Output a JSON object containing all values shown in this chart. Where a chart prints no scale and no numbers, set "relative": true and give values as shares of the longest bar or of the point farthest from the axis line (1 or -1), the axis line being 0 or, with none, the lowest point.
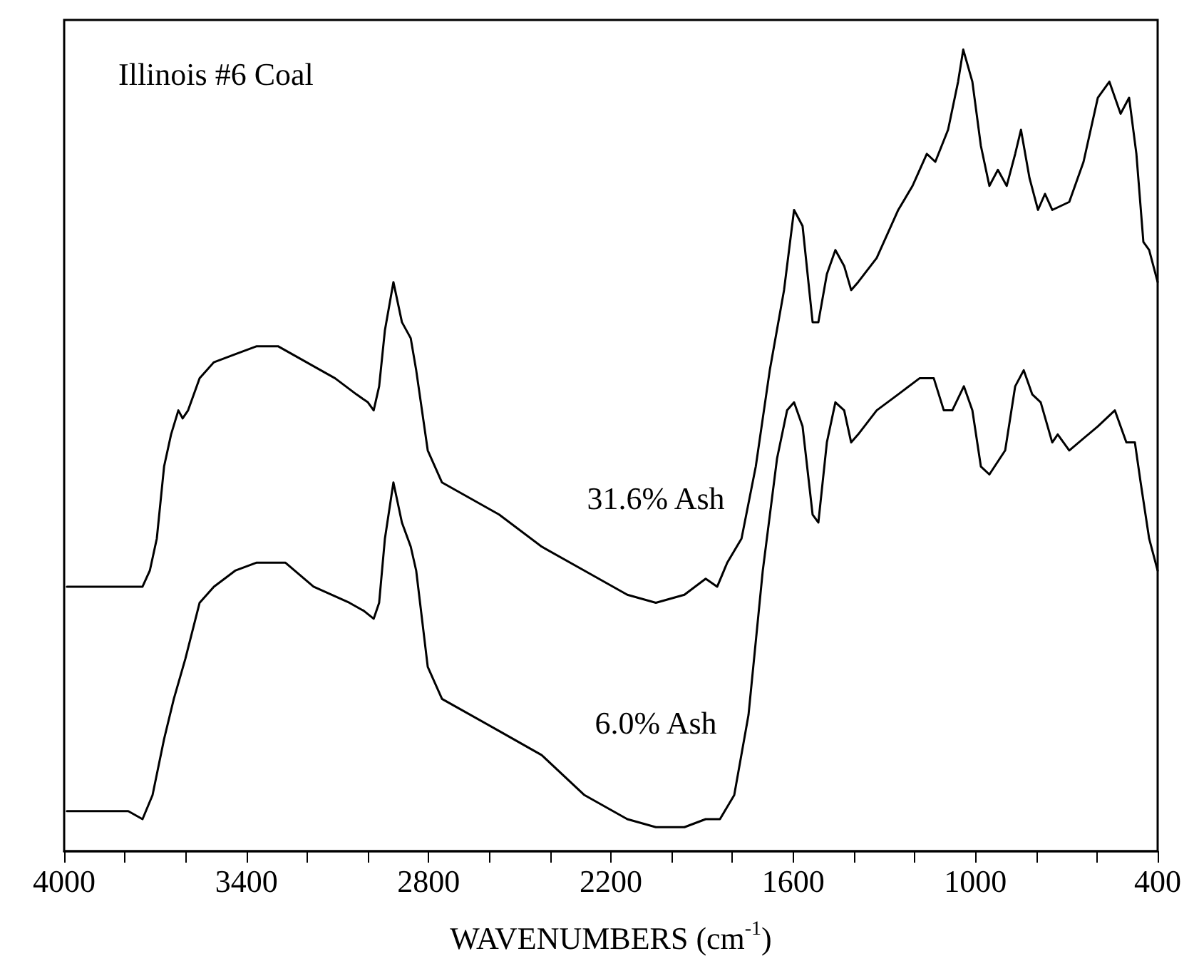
{
  "chart_data": {
    "type": "line",
    "relative": true,
    "xlabel": "WAVENUMBERS (cm$^{-1}$)",
    "xlim": [
      4000,
      400
    ],
    "xticks": [
      4000,
      {
        "value": 3800,
        "label": null
      },
      {
        "value": 3600,
        "label": null
      },
      3400,
      {
        "value": 3200,
        "label": null
      },
      {
        "value": 3000,
        "label": null
      },
      2800,
      {
        "value": 2600,
        "label": null
      },
      {
        "value": 2400,
        "label": null
      },
      2200,
      {
        "value": 2000,
        "label": null
      },
      {
        "value": 1800,
        "label": null
      },
      1600,
      {
        "value": 1400,
        "label": null
      },
      {
        "value": 1200,
        "label": null
      },
      1000,
      {
        "value": 800,
        "label": null
      },
      {
        "value": 600,
        "label": null
      },
      400
    ],
    "grid": false,
    "legend": false,
    "marker": "none",
    "line_style": "solid",
    "title": "Illinois #6 Coal",
    "series": [
      {
        "name": "31.6% Ash",
        "color": "#000000",
        "x": [
          3991,
          3789,
          3742,
          3718,
          3695,
          3671,
          3648,
          3624,
          3610,
          3592,
          3554,
          3507,
          3437,
          3366,
          3296,
          3202,
          3108,
          3038,
          3000,
          2981,
          2963,
          2944,
          2916,
          2888,
          2859,
          2841,
          2803,
          2756,
          2709,
          2568,
          2428,
          2287,
          2146,
          2052,
          1958,
          1888,
          1850,
          1817,
          1770,
          1723,
          1677,
          1630,
          1597,
          1569,
          1536,
          1517,
          1489,
          1461,
          1432,
          1409,
          1386,
          1325,
          1254,
          1207,
          1160,
          1132,
          1090,
          1057,
          1040,
          1010,
          982,
          954,
          926,
          897,
          869,
          850,
          822,
          794,
          771,
          747,
          691,
          644,
          597,
          559,
          522,
          494,
          470,
          447,
          428,
          400
        ],
        "values": [
          0.33,
          0.33,
          0.33,
          0.35,
          0.39,
          0.48,
          0.52,
          0.55,
          0.54,
          0.55,
          0.59,
          0.61,
          0.62,
          0.63,
          0.63,
          0.61,
          0.59,
          0.57,
          0.56,
          0.55,
          0.58,
          0.65,
          0.71,
          0.66,
          0.64,
          0.6,
          0.5,
          0.46,
          0.45,
          0.42,
          0.38,
          0.35,
          0.32,
          0.31,
          0.32,
          0.34,
          0.33,
          0.36,
          0.39,
          0.48,
          0.6,
          0.7,
          0.8,
          0.78,
          0.66,
          0.66,
          0.72,
          0.75,
          0.73,
          0.7,
          0.71,
          0.74,
          0.8,
          0.83,
          0.87,
          0.86,
          0.9,
          0.96,
          1.0,
          0.96,
          0.88,
          0.83,
          0.85,
          0.83,
          0.87,
          0.9,
          0.84,
          0.8,
          0.82,
          0.8,
          0.81,
          0.86,
          0.94,
          0.96,
          0.92,
          0.94,
          0.87,
          0.76,
          0.75,
          0.71
        ]
      },
      {
        "name": "6.0% Ash",
        "color": "#000000",
        "x": [
          3991,
          3789,
          3742,
          3709,
          3671,
          3639,
          3601,
          3554,
          3507,
          3437,
          3366,
          3272,
          3179,
          3061,
          3014,
          2981,
          2963,
          2944,
          2916,
          2888,
          2859,
          2841,
          2803,
          2756,
          2709,
          2568,
          2428,
          2287,
          2146,
          2052,
          1958,
          1888,
          1841,
          1794,
          1747,
          1700,
          1653,
          1620,
          1597,
          1569,
          1536,
          1517,
          1489,
          1461,
          1432,
          1409,
          1386,
          1325,
          1254,
          1184,
          1137,
          1104,
          1076,
          1038,
          1010,
          982,
          954,
          902,
          869,
          841,
          813,
          785,
          747,
          729,
          691,
          597,
          541,
          503,
          475,
          456,
          428,
          400
        ],
        "values": [
          0.05,
          0.05,
          0.04,
          0.07,
          0.14,
          0.19,
          0.24,
          0.31,
          0.33,
          0.35,
          0.36,
          0.36,
          0.33,
          0.31,
          0.3,
          0.29,
          0.31,
          0.39,
          0.46,
          0.41,
          0.38,
          0.35,
          0.23,
          0.19,
          0.18,
          0.15,
          0.12,
          0.07,
          0.04,
          0.03,
          0.03,
          0.04,
          0.04,
          0.07,
          0.17,
          0.35,
          0.49,
          0.55,
          0.56,
          0.53,
          0.42,
          0.41,
          0.51,
          0.56,
          0.55,
          0.51,
          0.52,
          0.55,
          0.57,
          0.59,
          0.59,
          0.55,
          0.55,
          0.58,
          0.55,
          0.48,
          0.47,
          0.5,
          0.58,
          0.6,
          0.57,
          0.56,
          0.51,
          0.52,
          0.5,
          0.53,
          0.55,
          0.51,
          0.51,
          0.46,
          0.39,
          0.35
        ]
      }
    ]
  }
}
